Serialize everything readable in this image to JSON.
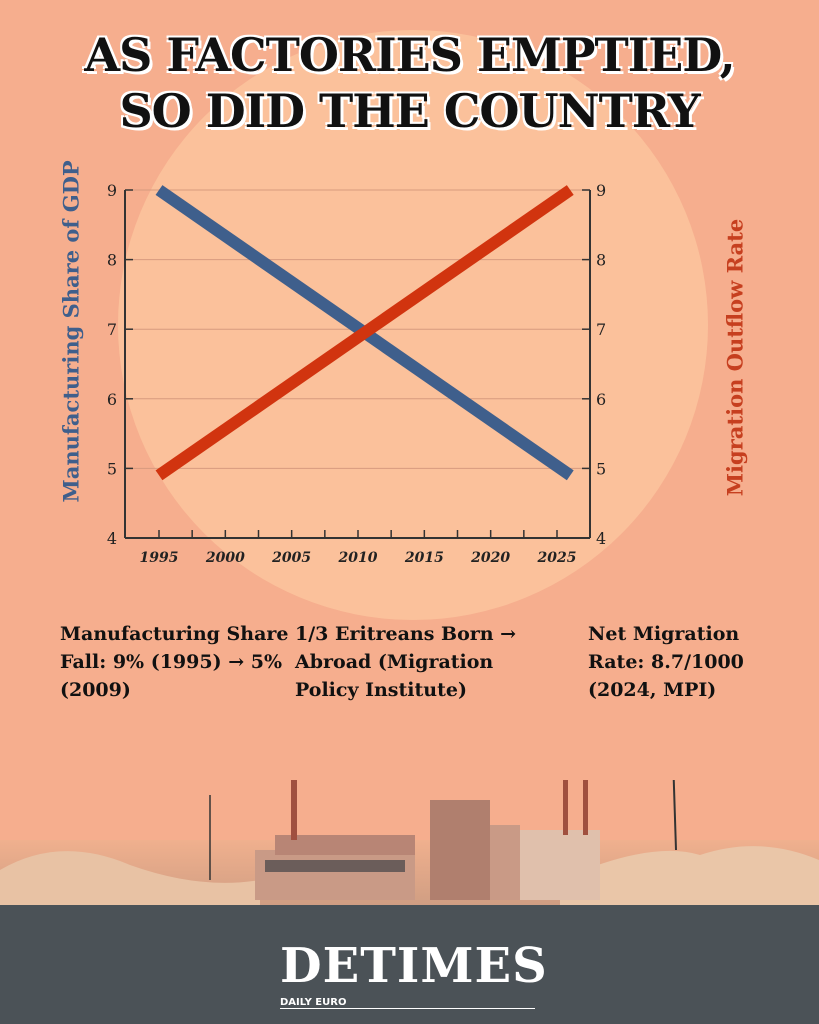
{
  "title": {
    "line1": "AS FACTORIES EMPTIED,",
    "line2": "SO DID THE COUNTRY"
  },
  "chart_data": {
    "type": "line",
    "title": "AS FACTORIES EMPTIED, SO DID THE COUNTRY",
    "xlabel": "",
    "ylabel_left": "Manufacturing Share of GDP",
    "ylabel_right": "Migration Outflow Rate",
    "xlim": [
      1992,
      2028
    ],
    "ylim": [
      4,
      9
    ],
    "x_ticks": [
      1995,
      2000,
      2005,
      2010,
      2015,
      2020,
      2025
    ],
    "y_ticks": [
      4,
      5,
      6,
      7,
      8,
      9
    ],
    "grid": true,
    "series": [
      {
        "name": "Manufacturing Share of GDP",
        "axis": "left",
        "color": "#3f5f8c",
        "x": [
          1995,
          2026
        ],
        "y": [
          9,
          4.9
        ]
      },
      {
        "name": "Migration Outflow Rate",
        "axis": "right",
        "color": "#d1340f",
        "x": [
          1995,
          2026
        ],
        "y": [
          4.9,
          9
        ]
      }
    ]
  },
  "notes": [
    "Manufacturing Share Fall: 9% (1995) → 5% (2009)",
    "1/3 Eritreans Born → Abroad (Migration Policy Institute)",
    "Net Migration Rate: 8.7/1000 (2024, MPI)"
  ],
  "logo": {
    "main": "DETIMES",
    "sub": "DAILY EURO"
  }
}
